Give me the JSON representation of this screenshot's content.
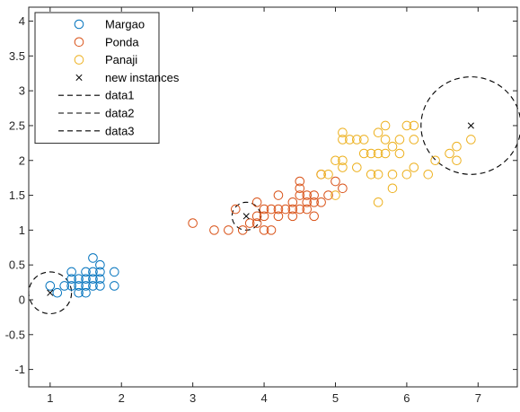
{
  "chart_data": {
    "type": "scatter",
    "title": "",
    "xlabel": "",
    "ylabel": "",
    "xlim": [
      0.7,
      7.55
    ],
    "ylim": [
      -1.25,
      4.2
    ],
    "xticks": [
      1,
      2,
      3,
      4,
      5,
      6,
      7
    ],
    "yticks": [
      -1,
      -0.5,
      0,
      0.5,
      1,
      1.5,
      2,
      2.5,
      3,
      3.5,
      4
    ],
    "grid": false,
    "legend_position": "top-left",
    "series": [
      {
        "name": "Margao",
        "marker": "circle",
        "color": "#0072BD",
        "points": [
          [
            1.0,
            0.2
          ],
          [
            1.1,
            0.1
          ],
          [
            1.2,
            0.2
          ],
          [
            1.3,
            0.2
          ],
          [
            1.3,
            0.3
          ],
          [
            1.3,
            0.4
          ],
          [
            1.4,
            0.1
          ],
          [
            1.4,
            0.2
          ],
          [
            1.4,
            0.3
          ],
          [
            1.5,
            0.1
          ],
          [
            1.5,
            0.2
          ],
          [
            1.5,
            0.3
          ],
          [
            1.5,
            0.4
          ],
          [
            1.6,
            0.2
          ],
          [
            1.6,
            0.3
          ],
          [
            1.6,
            0.4
          ],
          [
            1.6,
            0.6
          ],
          [
            1.7,
            0.2
          ],
          [
            1.7,
            0.3
          ],
          [
            1.7,
            0.4
          ],
          [
            1.7,
            0.5
          ],
          [
            1.9,
            0.2
          ],
          [
            1.9,
            0.4
          ]
        ]
      },
      {
        "name": "Ponda",
        "marker": "circle",
        "color": "#D95319",
        "points": [
          [
            3.0,
            1.1
          ],
          [
            3.3,
            1.0
          ],
          [
            3.5,
            1.0
          ],
          [
            3.6,
            1.3
          ],
          [
            3.7,
            1.0
          ],
          [
            3.8,
            1.1
          ],
          [
            3.9,
            1.1
          ],
          [
            3.9,
            1.2
          ],
          [
            3.9,
            1.4
          ],
          [
            4.0,
            1.0
          ],
          [
            4.0,
            1.2
          ],
          [
            4.0,
            1.3
          ],
          [
            4.1,
            1.0
          ],
          [
            4.1,
            1.3
          ],
          [
            4.2,
            1.2
          ],
          [
            4.2,
            1.3
          ],
          [
            4.2,
            1.5
          ],
          [
            4.3,
            1.3
          ],
          [
            4.4,
            1.2
          ],
          [
            4.4,
            1.3
          ],
          [
            4.4,
            1.4
          ],
          [
            4.5,
            1.3
          ],
          [
            4.5,
            1.5
          ],
          [
            4.5,
            1.6
          ],
          [
            4.5,
            1.7
          ],
          [
            4.6,
            1.3
          ],
          [
            4.6,
            1.4
          ],
          [
            4.6,
            1.5
          ],
          [
            4.7,
            1.2
          ],
          [
            4.7,
            1.4
          ],
          [
            4.7,
            1.5
          ],
          [
            4.8,
            1.4
          ],
          [
            4.8,
            1.8
          ],
          [
            4.9,
            1.5
          ],
          [
            5.0,
            1.7
          ],
          [
            5.1,
            1.6
          ]
        ]
      },
      {
        "name": "Panaji",
        "marker": "circle",
        "color": "#EDB120",
        "points": [
          [
            4.8,
            1.8
          ],
          [
            4.9,
            1.8
          ],
          [
            5.0,
            1.5
          ],
          [
            5.0,
            2.0
          ],
          [
            5.1,
            1.9
          ],
          [
            5.1,
            2.0
          ],
          [
            5.1,
            2.3
          ],
          [
            5.1,
            2.4
          ],
          [
            5.2,
            2.3
          ],
          [
            5.3,
            1.9
          ],
          [
            5.3,
            2.3
          ],
          [
            5.4,
            2.1
          ],
          [
            5.4,
            2.3
          ],
          [
            5.5,
            1.8
          ],
          [
            5.5,
            2.1
          ],
          [
            5.6,
            1.4
          ],
          [
            5.6,
            1.8
          ],
          [
            5.6,
            2.1
          ],
          [
            5.6,
            2.4
          ],
          [
            5.7,
            2.1
          ],
          [
            5.7,
            2.3
          ],
          [
            5.7,
            2.5
          ],
          [
            5.8,
            1.6
          ],
          [
            5.8,
            1.8
          ],
          [
            5.8,
            2.2
          ],
          [
            5.9,
            2.1
          ],
          [
            5.9,
            2.3
          ],
          [
            6.0,
            1.8
          ],
          [
            6.0,
            2.5
          ],
          [
            6.1,
            1.9
          ],
          [
            6.1,
            2.3
          ],
          [
            6.1,
            2.5
          ],
          [
            6.3,
            1.8
          ],
          [
            6.4,
            2.0
          ],
          [
            6.6,
            2.1
          ],
          [
            6.7,
            2.0
          ],
          [
            6.7,
            2.2
          ],
          [
            6.9,
            2.3
          ]
        ]
      },
      {
        "name": "new instances",
        "marker": "x",
        "color": "#000000",
        "points": [
          [
            1.0,
            0.1
          ],
          [
            3.75,
            1.2
          ],
          [
            6.9,
            2.5
          ]
        ]
      },
      {
        "name": "data1",
        "marker": "dashed-circle",
        "color": "#000000",
        "center": [
          1.0,
          0.1
        ],
        "radius": 0.3
      },
      {
        "name": "data2",
        "marker": "dashed-circle",
        "color": "#000000",
        "center": [
          3.75,
          1.2
        ],
        "radius": 0.2
      },
      {
        "name": "data3",
        "marker": "dashed-circle",
        "color": "#000000",
        "center": [
          6.9,
          2.5
        ],
        "radius": 0.7
      }
    ]
  }
}
